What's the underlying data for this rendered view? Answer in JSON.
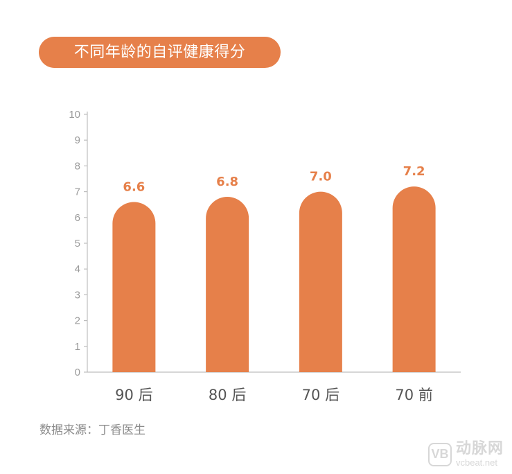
{
  "title": "不同年龄的自评健康得分",
  "source": "数据来源：丁香医生",
  "watermark": {
    "logo": "VB",
    "name": "动脉网",
    "url": "vcbeat.net"
  },
  "colors": {
    "accent": "#E6804A",
    "axis": "#bdbdbd",
    "tick_text": "#9a9a9a",
    "category_text": "#555555"
  },
  "chart_data": {
    "type": "bar",
    "categories": [
      "90 后",
      "80 后",
      "70 后",
      "70 前"
    ],
    "values": [
      6.6,
      6.8,
      7.0,
      7.2
    ],
    "value_labels": [
      "6.6",
      "6.8",
      "7.0",
      "7.2"
    ],
    "ylim": [
      0,
      10
    ],
    "yticks": [
      0,
      1,
      2,
      3,
      4,
      5,
      6,
      7,
      8,
      9,
      10
    ],
    "title": "不同年龄的自评健康得分",
    "xlabel": "",
    "ylabel": "",
    "grid": false,
    "legend": "none",
    "bar_style": "rounded-top"
  }
}
